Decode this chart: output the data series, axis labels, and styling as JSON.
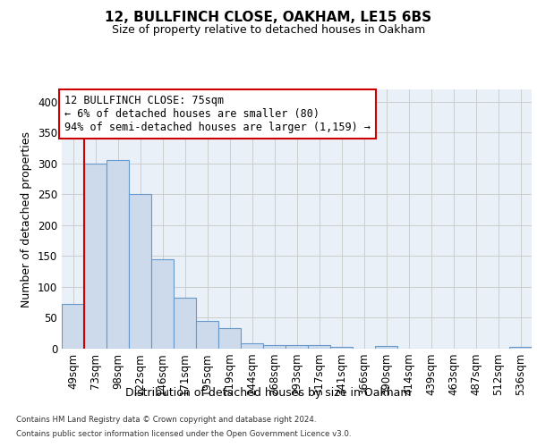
{
  "title1": "12, BULLFINCH CLOSE, OAKHAM, LE15 6BS",
  "title2": "Size of property relative to detached houses in Oakham",
  "xlabel": "Distribution of detached houses by size in Oakham",
  "ylabel": "Number of detached properties",
  "categories": [
    "49sqm",
    "73sqm",
    "98sqm",
    "122sqm",
    "146sqm",
    "171sqm",
    "195sqm",
    "219sqm",
    "244sqm",
    "268sqm",
    "293sqm",
    "317sqm",
    "341sqm",
    "366sqm",
    "390sqm",
    "414sqm",
    "439sqm",
    "463sqm",
    "487sqm",
    "512sqm",
    "536sqm"
  ],
  "values": [
    72,
    300,
    305,
    250,
    145,
    83,
    45,
    33,
    9,
    6,
    6,
    6,
    3,
    0,
    4,
    0,
    0,
    0,
    0,
    0,
    3
  ],
  "bar_color": "#ccdaec",
  "bar_edge_color": "#6699cc",
  "vline_x": 0.5,
  "vline_color": "#cc0000",
  "annotation_line1": "12 BULLFINCH CLOSE: 75sqm",
  "annotation_line2": "← 6% of detached houses are smaller (80)",
  "annotation_line3": "94% of semi-detached houses are larger (1,159) →",
  "ylim": [
    0,
    420
  ],
  "yticks": [
    0,
    50,
    100,
    150,
    200,
    250,
    300,
    350,
    400
  ],
  "grid_color": "#cccccc",
  "bg_color": "#eaf0f8",
  "footer1": "Contains HM Land Registry data © Crown copyright and database right 2024.",
  "footer2": "Contains public sector information licensed under the Open Government Licence v3.0."
}
